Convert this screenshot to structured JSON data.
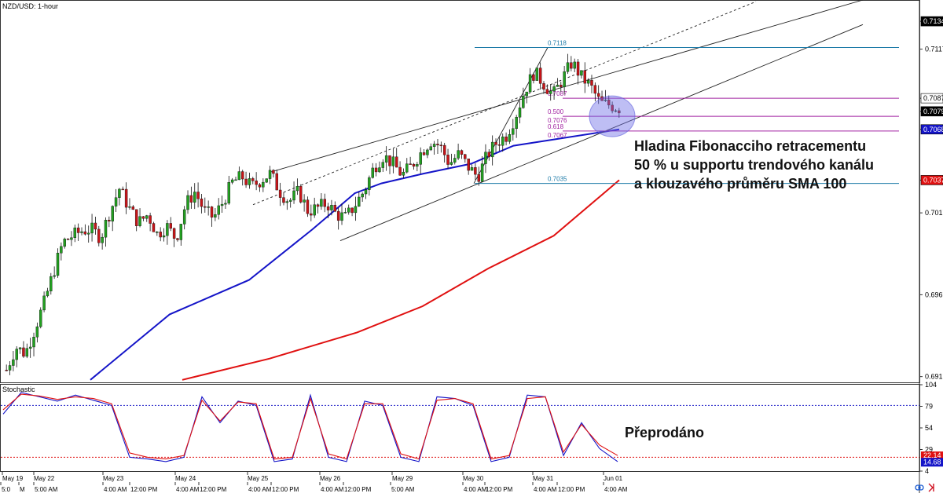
{
  "chart_data": [
    {
      "type": "candlestick",
      "title": "NZD/USD: 1-hour",
      "price_ticks": [
        "0.7134",
        "0.7117",
        "0.7087",
        "0.7079",
        "0.7068",
        "0.7037",
        "0.7017",
        "0.6967",
        "0.6917"
      ],
      "ylim": [
        0.6913,
        0.7147
      ],
      "date_labels": [
        "May 19",
        "May 22",
        "May 23",
        "May 24",
        "May 25",
        "May 26",
        "May 29",
        "May 30",
        "May 31",
        "Jun 01"
      ],
      "time_labels": [
        "5:0",
        "M",
        "5:00 AM",
        "4:00 AM",
        "12:00 PM",
        "4:00 AM",
        "12:00 PM",
        "4:00 AM",
        "12:00 PM",
        "4:00 AM",
        "12:00 PM",
        "5:00 AM",
        "4:00 AM",
        "12:00 PM",
        "4:00 AM",
        "12:00 PM",
        "4:00 AM"
      ],
      "price_badges": [
        {
          "label": "0.7134",
          "bg": "#000000",
          "fg": "#ffffff"
        },
        {
          "label": "0.7087",
          "bg": "#ffffff",
          "fg": "#000000"
        },
        {
          "label": "0.7079",
          "bg": "#000000",
          "fg": "#ffffff"
        },
        {
          "label": "0.7068",
          "bg": "#1414c8",
          "fg": "#ffffff"
        },
        {
          "label": "0.7037",
          "bg": "#e01010",
          "fg": "#ffffff"
        }
      ],
      "candle_colors": {
        "up": "#22a020",
        "down": "#c81418"
      },
      "close_path": [
        0.6921,
        0.6935,
        0.6931,
        0.6946,
        0.6962,
        0.6981,
        0.6999,
        0.7003,
        0.7006,
        0.7007,
        0.7002,
        0.7018,
        0.7032,
        0.702,
        0.7011,
        0.7016,
        0.7004,
        0.7009,
        0.7001,
        0.7022,
        0.703,
        0.7018,
        0.7014,
        0.7024,
        0.7036,
        0.7039,
        0.7033,
        0.7037,
        0.7041,
        0.703,
        0.7024,
        0.703,
        0.7018,
        0.702,
        0.7023,
        0.7016,
        0.7014,
        0.7022,
        0.7031,
        0.7045,
        0.7052,
        0.7047,
        0.704,
        0.7046,
        0.7054,
        0.7061,
        0.7058,
        0.7047,
        0.7053,
        0.7045,
        0.7039,
        0.7052,
        0.706,
        0.7064,
        0.7076,
        0.7092,
        0.7103,
        0.7096,
        0.7089,
        0.7099,
        0.7109,
        0.71,
        0.7094,
        0.7084,
        0.7083,
        0.7081
      ],
      "series": [
        {
          "name": "SMA 100",
          "color": "#1414c8",
          "x": [
            0.0,
            0.15,
            0.3,
            0.42,
            0.5,
            0.55,
            0.63,
            0.72,
            0.8,
            1.0
          ],
          "values": [
            0.6915,
            0.6955,
            0.6976,
            0.7007,
            0.7029,
            0.7035,
            0.7041,
            0.7047,
            0.7058,
            0.7068
          ]
        },
        {
          "name": "SMA 200",
          "color": "#e01010",
          "x": [
            0.0,
            0.2,
            0.4,
            0.55,
            0.7,
            0.85,
            1.0
          ],
          "values": [
            0.6915,
            0.6928,
            0.6944,
            0.696,
            0.6983,
            0.7003,
            0.7037
          ]
        }
      ],
      "fibonacci": [
        {
          "label": "0.7118",
          "price": 0.7118,
          "color": "#1e7ba8"
        },
        {
          "label": "0.7087",
          "price": 0.7087,
          "color": "#a020a0"
        },
        {
          "label": "0.500",
          "sublabel": "0.7076",
          "price": 0.7076,
          "color": "#a020a0"
        },
        {
          "label": "0.618",
          "sublabel": "0.7067",
          "price": 0.7067,
          "color": "#a020a0"
        },
        {
          "label": "0.7035",
          "price": 0.7035,
          "color": "#1e7ba8"
        }
      ],
      "annotation": [
        "Hladina Fibonacciho retracementu",
        "50 % u supportu trendového kanálu",
        "a klouzavého průměru SMA 100"
      ]
    },
    {
      "type": "line",
      "title": "Stochastic",
      "y_ticks": [
        "104",
        "79",
        "54",
        "29",
        "4"
      ],
      "ylim": [
        4,
        104
      ],
      "levels": [
        {
          "value": 80,
          "color": "#2020c8"
        },
        {
          "value": 20,
          "color": "#e01010"
        }
      ],
      "badges": [
        {
          "label": "22.14",
          "bg": "#e01010"
        },
        {
          "label": "14.68",
          "bg": "#1414c8"
        }
      ],
      "series": [
        {
          "name": "%K",
          "color": "#1414c8",
          "values": [
            70,
            95,
            90,
            85,
            92,
            86,
            80,
            20,
            18,
            15,
            20,
            90,
            60,
            85,
            80,
            15,
            18,
            92,
            20,
            15,
            85,
            80,
            20,
            15,
            90,
            88,
            80,
            15,
            20,
            92,
            90,
            22,
            60,
            30,
            15
          ]
        },
        {
          "name": "%D",
          "color": "#e01010",
          "values": [
            75,
            93,
            91,
            87,
            90,
            88,
            82,
            25,
            20,
            18,
            22,
            86,
            62,
            84,
            82,
            18,
            20,
            88,
            24,
            18,
            82,
            82,
            24,
            18,
            86,
            88,
            82,
            18,
            22,
            88,
            90,
            26,
            58,
            34,
            22
          ]
        }
      ],
      "annotation": "Přeprodáno"
    }
  ]
}
